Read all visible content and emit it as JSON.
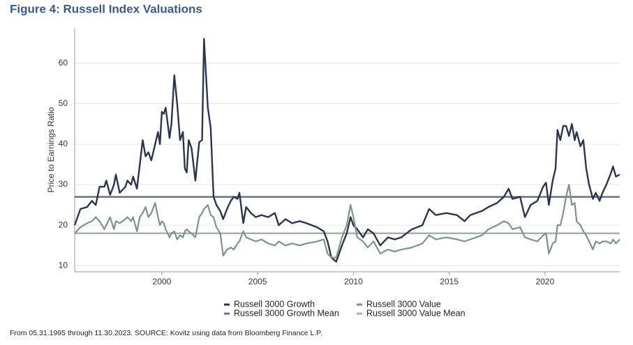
{
  "chart_data": {
    "type": "line",
    "title": "Figure 4: Russell Index Valuations",
    "y_label": "Price to Earnings Ratio",
    "footnote": "From 05.31.1995 through 11.30.2023. SOURCE: Kovitz using data from Bloomberg Finance L.P.",
    "x": [
      1995.45,
      1995.75,
      1996.1,
      1996.35,
      1996.55,
      1996.75,
      1997.0,
      1997.1,
      1997.3,
      1997.5,
      1997.6,
      1997.8,
      1998.1,
      1998.2,
      1998.4,
      1998.5,
      1998.7,
      1998.85,
      1999.0,
      1999.15,
      1999.3,
      1999.45,
      1999.65,
      1999.8,
      1999.9,
      2000.0,
      2000.1,
      2000.2,
      2000.4,
      2000.5,
      2000.65,
      2000.8,
      2000.95,
      2001.1,
      2001.2,
      2001.3,
      2001.4,
      2001.55,
      2001.75,
      2001.95,
      2002.1,
      2002.2,
      2002.4,
      2002.55,
      2002.7,
      2002.85,
      2003.05,
      2003.2,
      2003.4,
      2003.6,
      2003.75,
      2003.95,
      2004.05,
      2004.25,
      2004.4,
      2004.65,
      2004.9,
      2005.2,
      2005.55,
      2005.9,
      2006.1,
      2006.45,
      2006.8,
      2007.2,
      2007.55,
      2008.1,
      2008.45,
      2008.65,
      2008.85,
      2009.1,
      2009.4,
      2009.65,
      2009.85,
      2010.0,
      2010.2,
      2010.5,
      2010.75,
      2011.05,
      2011.4,
      2011.8,
      2012.15,
      2012.5,
      2013.05,
      2013.6,
      2013.95,
      2014.3,
      2014.85,
      2015.4,
      2015.8,
      2016.1,
      2016.7,
      2017.05,
      2017.5,
      2017.85,
      2018.1,
      2018.3,
      2018.7,
      2018.95,
      2019.25,
      2019.6,
      2019.9,
      2020.05,
      2020.2,
      2020.4,
      2020.55,
      2020.65,
      2020.8,
      2020.95,
      2021.1,
      2021.25,
      2021.4,
      2021.55,
      2021.65,
      2021.85,
      2022.0,
      2022.15,
      2022.3,
      2022.5,
      2022.65,
      2022.85,
      2023.0,
      2023.2,
      2023.45,
      2023.55,
      2023.7,
      2023.9
    ],
    "series": [
      {
        "name": "Russell 3000 Growth",
        "color": "#2b3551",
        "values": [
          20,
          24,
          24.5,
          26,
          25,
          29.5,
          29.5,
          31,
          27.5,
          30,
          32.5,
          28,
          29.5,
          31,
          30,
          32,
          29,
          35,
          41,
          37,
          38,
          36,
          40,
          43,
          40,
          48,
          47.5,
          49,
          41.5,
          45,
          57,
          50,
          41,
          43,
          34,
          33,
          41,
          39,
          31,
          40.5,
          41,
          66,
          49,
          44,
          27,
          25,
          23.5,
          21.5,
          24,
          26,
          27,
          26.5,
          28,
          20.5,
          24.5,
          23,
          22,
          22.5,
          22,
          23,
          20,
          21.5,
          20.5,
          21,
          20.5,
          19.5,
          18.5,
          16,
          12,
          11,
          15,
          18,
          22,
          20,
          19,
          17,
          19,
          18,
          15,
          17,
          16.5,
          17,
          19,
          20,
          24,
          22.5,
          23,
          22.5,
          21,
          22.5,
          23.5,
          24.5,
          25.5,
          27,
          29,
          26.5,
          27,
          22,
          25,
          26,
          29.5,
          30.5,
          25,
          31,
          34,
          43.5,
          41,
          44.5,
          44.5,
          42,
          45,
          41,
          43,
          39.5,
          41,
          34,
          30,
          26.5,
          28,
          26,
          28,
          30,
          33,
          34.5,
          32,
          32.5
        ]
      },
      {
        "name": "Russell 3000 Value",
        "color": "#7d9585",
        "values": [
          18,
          19.5,
          20.5,
          21,
          22,
          21,
          19,
          20,
          22,
          19,
          21,
          20.5,
          21.5,
          22,
          21,
          22,
          18.5,
          22,
          23,
          24.5,
          22,
          23,
          25.5,
          22,
          20,
          21,
          20.5,
          19,
          17,
          18,
          18.5,
          16.5,
          17.5,
          17,
          18.5,
          19,
          18.5,
          18,
          17,
          22,
          23,
          24,
          25,
          22.5,
          22,
          19.5,
          18,
          12.5,
          14,
          14.5,
          14,
          15.5,
          16,
          18.5,
          17,
          16.5,
          16,
          16.5,
          15.5,
          15,
          16,
          15,
          15.5,
          15,
          15.5,
          16,
          16.5,
          13,
          12,
          12,
          17,
          20,
          25,
          22,
          17,
          16,
          14.5,
          16,
          13,
          14,
          13.5,
          14,
          14.5,
          15.5,
          17.5,
          16.5,
          17,
          16.5,
          16,
          16.5,
          17.5,
          19,
          20,
          21,
          20.5,
          19,
          19.5,
          17,
          16.5,
          16,
          17.5,
          18,
          13,
          15.5,
          16,
          20,
          20,
          23,
          27,
          30,
          25,
          25.5,
          21,
          20,
          18.5,
          17.5,
          16,
          14,
          16,
          15.5,
          16,
          16,
          15.5,
          16.5,
          15.5,
          16.5
        ]
      }
    ],
    "mean_lines": [
      {
        "name": "Russell 3000 Growth Mean",
        "color": "#6b6f8e",
        "value": 27
      },
      {
        "name": "Russell 3000 Value Mean",
        "color": "#a3b5a9",
        "value": 18
      }
    ],
    "xlim": [
      1995.45,
      2023.9
    ],
    "ylim": [
      8.5,
      68.7
    ],
    "xticks": [
      2000,
      2005,
      2010,
      2015,
      2020
    ],
    "yticks": [
      10,
      20,
      30,
      40,
      50,
      60
    ],
    "grid": true
  }
}
